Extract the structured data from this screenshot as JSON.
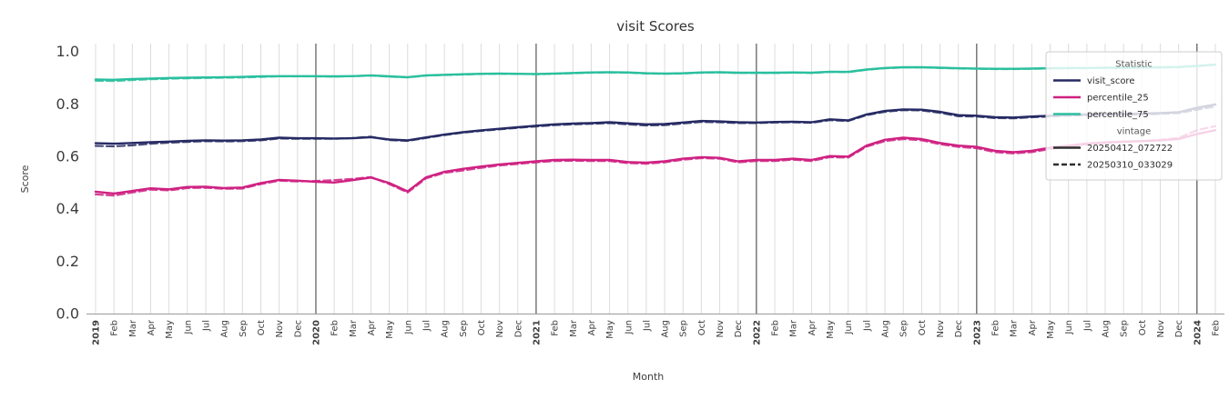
{
  "chart_data": {
    "type": "line",
    "title": "visit Scores",
    "xlabel": "Month",
    "ylabel": "Score",
    "ylim": [
      0.0,
      1.03
    ],
    "yticks": [
      0.0,
      0.2,
      0.4,
      0.6,
      0.8,
      1.0
    ],
    "grid": "vertical-monthly",
    "x_labels": [
      "2019",
      "Feb",
      "Mar",
      "Apr",
      "May",
      "Jun",
      "Jul",
      "Aug",
      "Sep",
      "Oct",
      "Nov",
      "Dec",
      "2020",
      "Feb",
      "Mar",
      "Apr",
      "May",
      "Jun",
      "Jul",
      "Aug",
      "Sep",
      "Oct",
      "Nov",
      "Dec",
      "2021",
      "Feb",
      "Mar",
      "Apr",
      "May",
      "Jun",
      "Jul",
      "Aug",
      "Sep",
      "Oct",
      "Nov",
      "Dec",
      "2022",
      "Feb",
      "Mar",
      "Apr",
      "May",
      "Jun",
      "Jul",
      "Aug",
      "Sep",
      "Oct",
      "Nov",
      "Dec",
      "2023",
      "Feb",
      "Mar",
      "Apr",
      "May",
      "Jun",
      "Jul",
      "Aug",
      "Sep",
      "Oct",
      "Nov",
      "Dec",
      "2024",
      "Feb"
    ],
    "x_year_indices": [
      0,
      12,
      24,
      36,
      48,
      60
    ],
    "year_line_indices": [
      12,
      24,
      36,
      48,
      60
    ],
    "colors": {
      "visit_score": "#262a63",
      "percentile_25": "#cf2081",
      "percentile_75": "#2abf9e",
      "grid": "#dcdcdc",
      "year_line": "#3a3a3a",
      "spine": "#9a9a9a",
      "tick_text": "#3d3d3d",
      "legend_border": "#cccccc",
      "legend_title_text": "#555555",
      "vintage_swatch": "#2e2e2e"
    },
    "series": [
      {
        "statistic": "visit_score",
        "vintage": "20250412_072722",
        "line_style": "solid",
        "color": "#262a63",
        "values": [
          0.65,
          0.648,
          0.651,
          0.654,
          0.656,
          0.659,
          0.661,
          0.66,
          0.661,
          0.664,
          0.671,
          0.669,
          0.669,
          0.668,
          0.669,
          0.673,
          0.664,
          0.661,
          0.672,
          0.683,
          0.692,
          0.699,
          0.705,
          0.711,
          0.717,
          0.722,
          0.725,
          0.727,
          0.73,
          0.726,
          0.722,
          0.723,
          0.729,
          0.735,
          0.733,
          0.73,
          0.729,
          0.731,
          0.732,
          0.73,
          0.741,
          0.737,
          0.76,
          0.773,
          0.779,
          0.778,
          0.77,
          0.757,
          0.755,
          0.749,
          0.748,
          0.752,
          0.755,
          0.758,
          0.76,
          0.761,
          0.762,
          0.763,
          0.765,
          0.768,
          0.785,
          0.798
        ]
      },
      {
        "statistic": "visit_score",
        "vintage": "20250310_033029",
        "line_style": "dashed",
        "color": "#262a63",
        "values": [
          0.64,
          0.638,
          0.642,
          0.648,
          0.652,
          0.655,
          0.658,
          0.657,
          0.658,
          0.661,
          0.668,
          0.667,
          0.667,
          0.667,
          0.67,
          0.675,
          0.662,
          0.659,
          0.67,
          0.681,
          0.69,
          0.697,
          0.703,
          0.709,
          0.714,
          0.719,
          0.722,
          0.724,
          0.727,
          0.722,
          0.718,
          0.719,
          0.725,
          0.731,
          0.73,
          0.727,
          0.727,
          0.729,
          0.73,
          0.728,
          0.738,
          0.735,
          0.757,
          0.77,
          0.776,
          0.775,
          0.766,
          0.753,
          0.752,
          0.746,
          0.745,
          0.749,
          0.752,
          0.755,
          0.757,
          0.758,
          0.759,
          0.76,
          0.762,
          0.765,
          0.778,
          0.79
        ]
      },
      {
        "statistic": "percentile_25",
        "vintage": "20250412_072722",
        "line_style": "solid",
        "color": "#cf2081",
        "values": [
          0.465,
          0.458,
          0.468,
          0.478,
          0.474,
          0.483,
          0.484,
          0.479,
          0.481,
          0.498,
          0.51,
          0.507,
          0.503,
          0.5,
          0.509,
          0.519,
          0.498,
          0.466,
          0.52,
          0.541,
          0.552,
          0.561,
          0.569,
          0.575,
          0.581,
          0.586,
          0.587,
          0.586,
          0.586,
          0.578,
          0.576,
          0.581,
          0.591,
          0.597,
          0.594,
          0.581,
          0.586,
          0.586,
          0.591,
          0.586,
          0.601,
          0.599,
          0.641,
          0.663,
          0.671,
          0.666,
          0.651,
          0.641,
          0.636,
          0.621,
          0.616,
          0.621,
          0.633,
          0.641,
          0.649,
          0.653,
          0.656,
          0.658,
          0.661,
          0.666,
          0.685,
          0.7
        ]
      },
      {
        "statistic": "percentile_25",
        "vintage": "20250310_033029",
        "line_style": "dashed",
        "color": "#cf2081",
        "values": [
          0.455,
          0.45,
          0.462,
          0.473,
          0.47,
          0.479,
          0.48,
          0.476,
          0.477,
          0.494,
          0.507,
          0.504,
          0.506,
          0.509,
          0.514,
          0.521,
          0.494,
          0.462,
          0.516,
          0.537,
          0.546,
          0.556,
          0.565,
          0.571,
          0.577,
          0.582,
          0.583,
          0.582,
          0.582,
          0.574,
          0.572,
          0.577,
          0.587,
          0.593,
          0.591,
          0.577,
          0.582,
          0.582,
          0.587,
          0.582,
          0.597,
          0.595,
          0.637,
          0.658,
          0.666,
          0.661,
          0.646,
          0.636,
          0.631,
          0.616,
          0.611,
          0.616,
          0.628,
          0.637,
          0.646,
          0.651,
          0.655,
          0.658,
          0.663,
          0.67,
          0.7,
          0.715
        ]
      },
      {
        "statistic": "percentile_75",
        "vintage": "20250412_072722",
        "line_style": "solid",
        "color": "#2abf9e",
        "values": [
          0.893,
          0.892,
          0.895,
          0.897,
          0.899,
          0.9,
          0.901,
          0.902,
          0.903,
          0.905,
          0.906,
          0.906,
          0.906,
          0.905,
          0.906,
          0.909,
          0.905,
          0.902,
          0.909,
          0.911,
          0.913,
          0.915,
          0.916,
          0.915,
          0.914,
          0.916,
          0.918,
          0.92,
          0.921,
          0.92,
          0.917,
          0.916,
          0.917,
          0.92,
          0.921,
          0.919,
          0.919,
          0.919,
          0.92,
          0.919,
          0.923,
          0.922,
          0.931,
          0.937,
          0.94,
          0.94,
          0.938,
          0.936,
          0.935,
          0.934,
          0.934,
          0.935,
          0.936,
          0.937,
          0.937,
          0.938,
          0.938,
          0.939,
          0.94,
          0.941,
          0.945,
          0.95
        ]
      },
      {
        "statistic": "percentile_75",
        "vintage": "20250310_033029",
        "line_style": "dashed",
        "color": "#2abf9e",
        "values": [
          0.888,
          0.887,
          0.891,
          0.894,
          0.896,
          0.898,
          0.899,
          0.9,
          0.901,
          0.903,
          0.905,
          0.905,
          0.905,
          0.904,
          0.906,
          0.908,
          0.904,
          0.901,
          0.908,
          0.91,
          0.912,
          0.914,
          0.915,
          0.914,
          0.913,
          0.915,
          0.917,
          0.919,
          0.92,
          0.919,
          0.916,
          0.915,
          0.916,
          0.919,
          0.92,
          0.918,
          0.918,
          0.918,
          0.919,
          0.918,
          0.922,
          0.921,
          0.93,
          0.936,
          0.939,
          0.939,
          0.937,
          0.935,
          0.934,
          0.933,
          0.933,
          0.934,
          0.935,
          0.936,
          0.936,
          0.937,
          0.937,
          0.938,
          0.939,
          0.94,
          0.944,
          0.949
        ]
      }
    ],
    "legend": {
      "statistic_title": "Statistic",
      "statistics": [
        {
          "label": "visit_score",
          "color": "#262a63"
        },
        {
          "label": "percentile_25",
          "color": "#cf2081"
        },
        {
          "label": "percentile_75",
          "color": "#2abf9e"
        }
      ],
      "vintage_title": "vintage",
      "vintages": [
        {
          "label": "20250412_072722",
          "line_style": "solid"
        },
        {
          "label": "20250310_033029",
          "line_style": "dashed"
        }
      ]
    }
  }
}
